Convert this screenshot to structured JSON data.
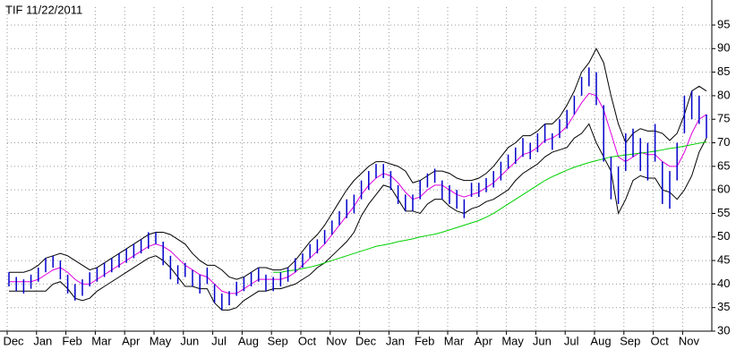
{
  "chart_data": {
    "type": "stock",
    "title": "TIF 11/22/2011",
    "categories": [
      "Dec",
      null,
      null,
      null,
      "Jan",
      null,
      null,
      null,
      "Feb",
      null,
      null,
      null,
      "Mar",
      null,
      null,
      null,
      "Apr",
      null,
      null,
      null,
      "May",
      null,
      null,
      null,
      "Jun",
      null,
      null,
      null,
      "Jul",
      null,
      null,
      null,
      "Aug",
      null,
      null,
      null,
      "Sep",
      null,
      null,
      null,
      "Oct",
      null,
      null,
      null,
      "Nov",
      null,
      null,
      null,
      "Dec",
      null,
      null,
      null,
      "Jan",
      null,
      null,
      null,
      "Feb",
      null,
      null,
      null,
      "Mar",
      null,
      null,
      null,
      "Apr",
      null,
      null,
      null,
      "May",
      null,
      null,
      null,
      "Jun",
      null,
      null,
      null,
      "Jul",
      null,
      null,
      null,
      "Aug",
      null,
      null,
      null,
      "Sep",
      null,
      null,
      null,
      "Oct",
      null,
      null,
      null,
      "Nov",
      null,
      null,
      null
    ],
    "high": [
      42.5,
      41.5,
      41,
      42,
      43.5,
      45.5,
      46,
      45,
      42,
      40,
      41,
      42.5,
      43.5,
      44.5,
      45.5,
      46.5,
      47.5,
      48.5,
      49.5,
      51,
      51,
      49,
      46,
      44,
      44.5,
      43,
      42,
      43.5,
      40,
      38,
      38.5,
      40.5,
      41.5,
      42.5,
      43.5,
      42,
      41.5,
      42.5,
      43.5,
      45.5,
      46.5,
      48.5,
      49.5,
      51.5,
      53.5,
      55.5,
      58,
      59,
      62,
      64,
      65.5,
      65.5,
      64,
      61,
      59,
      59,
      62,
      63.5,
      64.5,
      62,
      61,
      60,
      58,
      61.5,
      61.5,
      62.5,
      64,
      66,
      67.5,
      69,
      71,
      70,
      72,
      74,
      72,
      75,
      77,
      80,
      84,
      86,
      85,
      78,
      67,
      65,
      72,
      73,
      71,
      70,
      74,
      66,
      64,
      70,
      80,
      81,
      80,
      76
    ],
    "low": [
      39.5,
      38.5,
      38,
      39,
      40.5,
      42.5,
      43.5,
      41,
      38,
      36.5,
      37.5,
      39.5,
      40.5,
      41.5,
      42.5,
      43.5,
      44.5,
      45.5,
      46.5,
      47.5,
      48.5,
      44,
      41,
      40,
      41.5,
      39.5,
      38,
      40,
      36,
      34.5,
      35.5,
      37.5,
      38.5,
      39.5,
      40.5,
      38.5,
      38.5,
      39.5,
      40.5,
      42.5,
      43.5,
      45.5,
      46.5,
      48.5,
      50.5,
      52.5,
      54,
      55,
      58,
      60,
      62.5,
      62.5,
      60,
      57,
      55.5,
      55.5,
      58,
      60.5,
      61.5,
      58,
      57,
      56,
      54,
      58.5,
      58.5,
      59.5,
      60.5,
      62,
      64.5,
      65.5,
      67,
      66.5,
      68,
      70,
      68.5,
      71,
      73,
      76,
      80,
      82,
      78,
      66,
      58,
      57,
      64,
      67,
      64,
      62,
      66,
      57,
      56,
      62,
      72,
      75,
      74,
      71
    ],
    "lines": [
      {
        "color": "#e000e0",
        "values": [
          40.5,
          40.5,
          40.5,
          40.5,
          41,
          42,
          43,
          43.5,
          42.5,
          41,
          40,
          40,
          41,
          42,
          43,
          44,
          45,
          46,
          47,
          48,
          48.5,
          48,
          47,
          45.5,
          44,
          43,
          42,
          41.5,
          40,
          38.5,
          38,
          38,
          39,
          40,
          41,
          41,
          41,
          41,
          41.5,
          42.5,
          44,
          45.5,
          47,
          48.5,
          50.5,
          52.5,
          54.5,
          56.5,
          59,
          61,
          62.5,
          63.5,
          63,
          61.5,
          59.5,
          58,
          58.5,
          60,
          61,
          61,
          60,
          59,
          58.5,
          59,
          59.5,
          60.5,
          61.5,
          63,
          64.5,
          66,
          67.5,
          68,
          69,
          70.5,
          71,
          72,
          73.5,
          76,
          78.5,
          80.5,
          80,
          77,
          72,
          67,
          66,
          67,
          68,
          67.5,
          67.5,
          66,
          65,
          65,
          68,
          72,
          75,
          76
        ]
      },
      {
        "color": "#000000",
        "values": [
          42.5,
          42.5,
          42.5,
          43,
          44,
          45.5,
          46,
          46.5,
          46,
          45,
          44,
          43,
          43.5,
          44.5,
          45.5,
          46.5,
          47.5,
          48.5,
          49.5,
          50.5,
          51,
          51,
          50.5,
          49.5,
          48.5,
          46.5,
          45,
          44,
          44,
          43,
          41.5,
          41,
          41.5,
          42.5,
          43.5,
          43.5,
          43,
          43,
          43.5,
          45,
          47,
          49,
          50.5,
          52.5,
          55,
          57.5,
          60,
          62,
          63.5,
          65,
          66,
          66,
          65.5,
          65,
          64,
          61.5,
          62,
          63,
          64,
          64,
          63.5,
          62.5,
          62,
          62,
          62.5,
          63.5,
          65,
          67,
          69,
          70,
          71.5,
          71.5,
          72.5,
          74,
          74,
          75.5,
          78,
          81,
          85,
          87,
          90,
          87,
          80,
          74,
          70,
          72,
          73,
          72.5,
          72.5,
          72,
          70.5,
          72,
          76,
          81,
          82,
          81
        ]
      },
      {
        "color": "#000000",
        "values": [
          38.5,
          38.5,
          38.5,
          38.5,
          38.5,
          38.5,
          40,
          40.5,
          39,
          37,
          36.5,
          37,
          38.5,
          39.5,
          40.5,
          41.5,
          42.5,
          43.5,
          44.5,
          45.5,
          46,
          45,
          43.5,
          41.5,
          39.5,
          39.5,
          39,
          39,
          36,
          34.5,
          34.5,
          35,
          36.5,
          37.5,
          38.5,
          38.5,
          39,
          39,
          39.5,
          40,
          41,
          42,
          43.5,
          44.5,
          46,
          47.5,
          49,
          51,
          54.5,
          57,
          59,
          61,
          60.5,
          58,
          55.5,
          55.5,
          55,
          57,
          58,
          58,
          56.5,
          55.5,
          55,
          56,
          56.5,
          57.5,
          58,
          59,
          60,
          62,
          63.5,
          64.5,
          65.5,
          67,
          68,
          68.5,
          69,
          71,
          72,
          74,
          70,
          67,
          64,
          55,
          58,
          62,
          63,
          62.5,
          62.5,
          60,
          59.5,
          58,
          60,
          63,
          68,
          71
        ]
      },
      {
        "color": "#00d000",
        "values": [
          null,
          null,
          null,
          null,
          null,
          null,
          null,
          null,
          null,
          null,
          null,
          null,
          null,
          null,
          null,
          null,
          null,
          null,
          null,
          null,
          null,
          null,
          null,
          null,
          null,
          null,
          null,
          null,
          null,
          null,
          null,
          null,
          null,
          null,
          null,
          null,
          42.5,
          42.5,
          42.8,
          43,
          43.3,
          43.6,
          44,
          44.5,
          45,
          45.5,
          46,
          46.5,
          47,
          47.5,
          48,
          48.3,
          48.6,
          49,
          49.3,
          49.6,
          50,
          50.3,
          50.6,
          51,
          51.5,
          52,
          52.5,
          53,
          53.5,
          54.2,
          55,
          56,
          57,
          58,
          59,
          60,
          61,
          62,
          62.8,
          63.5,
          64.2,
          64.8,
          65.3,
          65.8,
          66.2,
          66.6,
          67,
          67.2,
          67.4,
          67.6,
          67.8,
          68,
          68.2,
          68.5,
          68.8,
          69,
          69.3,
          69.6,
          69.9,
          70.2
        ]
      }
    ],
    "bar_color": "#0000cc",
    "ylim": [
      30,
      95
    ],
    "yticks": [
      30,
      35,
      40,
      45,
      50,
      55,
      60,
      65,
      70,
      75,
      80,
      85,
      90,
      95
    ],
    "grid": true
  }
}
